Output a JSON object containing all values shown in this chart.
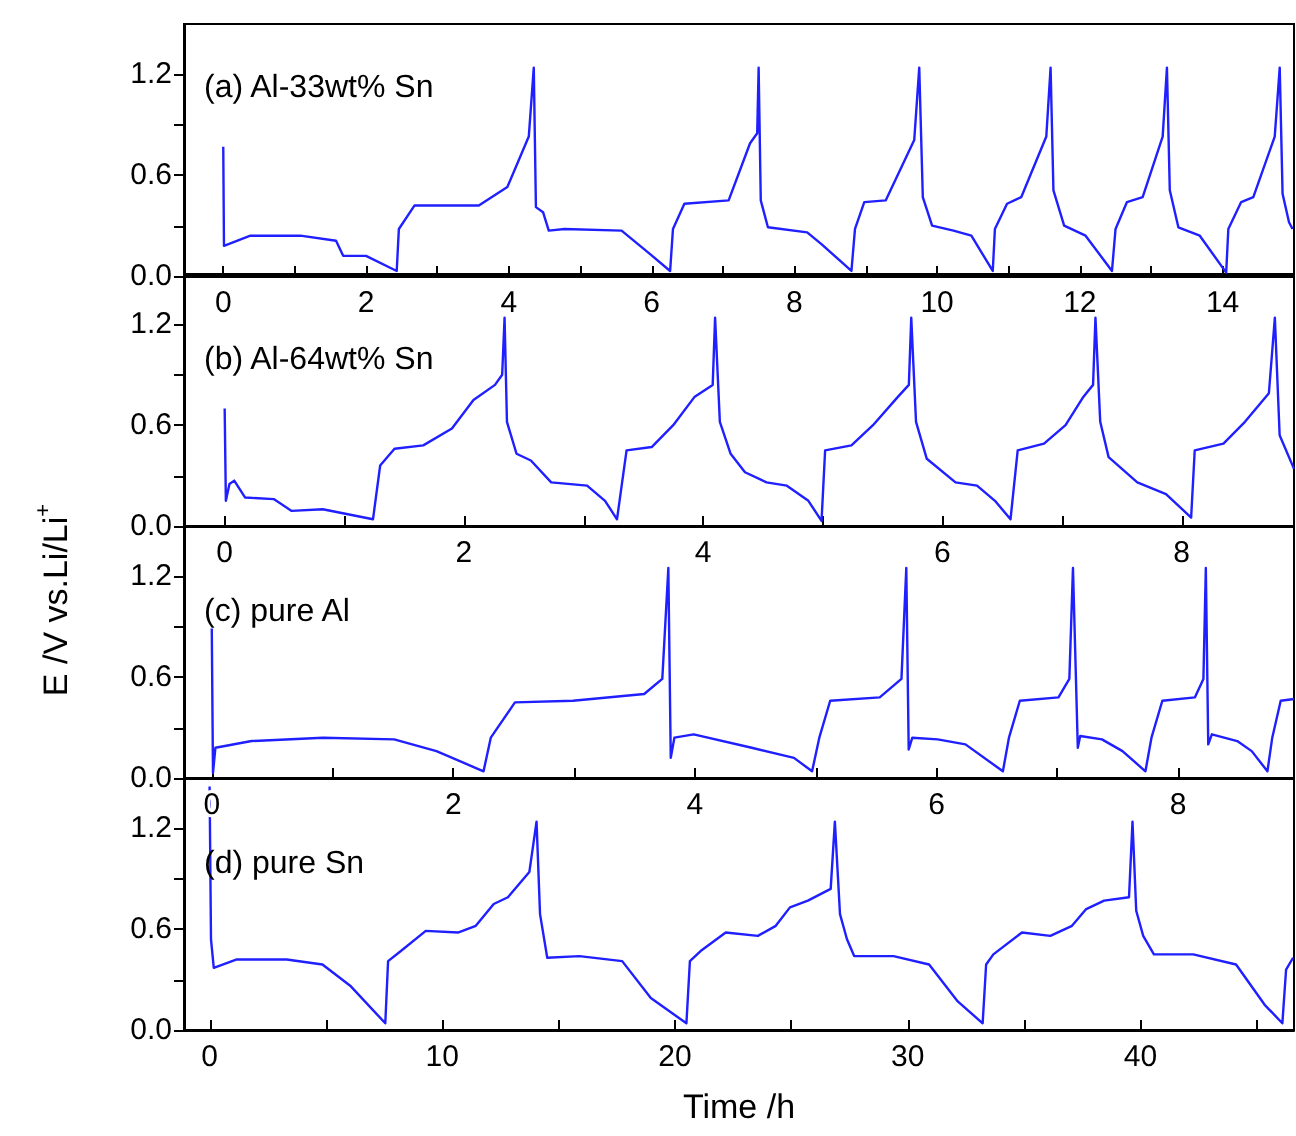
{
  "chart_data": [
    {
      "type": "line",
      "title": "(a) Al-33wt% Sn",
      "marker": "none",
      "line_style": "solid",
      "grid": false,
      "xlim": [
        -0.55,
        15.0
      ],
      "xticks": [
        0,
        {
          "value": 1,
          "label": null
        },
        2,
        {
          "value": 3,
          "label": null
        },
        4,
        {
          "value": 5,
          "label": null
        },
        6,
        {
          "value": 7,
          "label": null
        },
        8,
        {
          "value": 9,
          "label": null
        },
        10,
        {
          "value": 11,
          "label": null
        },
        12,
        {
          "value": 13,
          "label": null
        },
        14
      ],
      "ylim": [
        0,
        1.5
      ],
      "yticks": [
        {
          "value": 0,
          "label": "0.0"
        },
        {
          "value": 0.3,
          "label": null
        },
        {
          "value": 0.6,
          "label": "0.6"
        },
        {
          "value": 0.9,
          "label": null
        },
        {
          "value": 1.2,
          "label": "1.2"
        }
      ],
      "series": [
        {
          "color": "#1f1fff",
          "x": [
            0,
            0.01,
            0.38,
            1.08,
            1.58,
            1.68,
            2.0,
            2.43,
            2.46,
            2.68,
            3.58,
            3.98,
            4.28,
            4.35,
            4.38,
            4.48,
            4.56,
            4.78,
            5.58,
            5.98,
            6.26,
            6.3,
            6.46,
            7.08,
            7.38,
            7.48,
            7.5,
            7.53,
            7.63,
            8.18,
            8.38,
            8.8,
            8.85,
            8.98,
            9.28,
            9.68,
            9.75,
            9.8,
            9.93,
            10.23,
            10.48,
            10.78,
            10.81,
            10.98,
            11.18,
            11.53,
            11.59,
            11.63,
            11.78,
            12.08,
            12.45,
            12.5,
            12.66,
            12.88,
            13.16,
            13.22,
            13.26,
            13.38,
            13.68,
            14.05,
            14.08,
            14.26,
            14.43,
            14.73,
            14.8,
            14.84,
            14.93,
            14.98
          ],
          "values": [
            0.77,
            0.18,
            0.24,
            0.24,
            0.21,
            0.12,
            0.12,
            0.03,
            0.28,
            0.42,
            0.42,
            0.53,
            0.83,
            1.24,
            0.41,
            0.38,
            0.27,
            0.28,
            0.27,
            0.13,
            0.03,
            0.28,
            0.43,
            0.45,
            0.79,
            0.85,
            1.24,
            0.45,
            0.29,
            0.26,
            0.19,
            0.03,
            0.28,
            0.44,
            0.45,
            0.81,
            1.24,
            0.47,
            0.3,
            0.27,
            0.24,
            0.03,
            0.28,
            0.43,
            0.47,
            0.83,
            1.24,
            0.51,
            0.3,
            0.24,
            0.03,
            0.28,
            0.44,
            0.47,
            0.83,
            1.24,
            0.51,
            0.29,
            0.24,
            0.02,
            0.28,
            0.44,
            0.47,
            0.83,
            1.24,
            0.49,
            0.32,
            0.28
          ]
        }
      ]
    },
    {
      "type": "line",
      "title": "(b) Al-64wt% Sn",
      "marker": "none",
      "line_style": "solid",
      "grid": false,
      "xlim": [
        -0.34,
        8.94
      ],
      "xticks": [
        0,
        {
          "value": 1,
          "label": null
        },
        2,
        {
          "value": 3,
          "label": null
        },
        4,
        {
          "value": 5,
          "label": null
        },
        6,
        {
          "value": 7,
          "label": null
        },
        8
      ],
      "ylim": [
        0,
        1.5
      ],
      "yticks": [
        {
          "value": 0,
          "label": "0.0"
        },
        {
          "value": 0.3,
          "label": null
        },
        {
          "value": 0.6,
          "label": "0.6"
        },
        {
          "value": 0.9,
          "label": null
        },
        {
          "value": 1.2,
          "label": "1.2"
        }
      ],
      "series": [
        {
          "color": "#1f1fff",
          "x": [
            0,
            0.01,
            0.04,
            0.08,
            0.17,
            0.41,
            0.56,
            0.82,
            1.24,
            1.3,
            1.42,
            1.66,
            1.9,
            2.08,
            2.26,
            2.32,
            2.34,
            2.36,
            2.44,
            2.56,
            2.73,
            3.03,
            3.18,
            3.28,
            3.36,
            3.57,
            3.75,
            3.93,
            4.08,
            4.1,
            4.14,
            4.23,
            4.35,
            4.53,
            4.7,
            4.88,
            4.99,
            5.02,
            5.24,
            5.42,
            5.63,
            5.72,
            5.74,
            5.78,
            5.87,
            6.11,
            6.29,
            6.44,
            6.57,
            6.63,
            6.85,
            7.03,
            7.18,
            7.26,
            7.28,
            7.32,
            7.39,
            7.63,
            7.87,
            8.08,
            8.11,
            8.35,
            8.53,
            8.73,
            8.78,
            8.82,
            8.94
          ],
          "values": [
            0.7,
            0.15,
            0.25,
            0.27,
            0.17,
            0.16,
            0.09,
            0.1,
            0.04,
            0.36,
            0.46,
            0.48,
            0.58,
            0.75,
            0.84,
            0.9,
            1.24,
            0.62,
            0.43,
            0.39,
            0.26,
            0.24,
            0.15,
            0.04,
            0.45,
            0.47,
            0.6,
            0.77,
            0.84,
            1.24,
            0.62,
            0.43,
            0.32,
            0.26,
            0.24,
            0.15,
            0.03,
            0.45,
            0.48,
            0.6,
            0.77,
            0.84,
            1.24,
            0.62,
            0.4,
            0.26,
            0.24,
            0.15,
            0.04,
            0.45,
            0.49,
            0.6,
            0.77,
            0.84,
            1.24,
            0.62,
            0.41,
            0.26,
            0.19,
            0.05,
            0.45,
            0.49,
            0.62,
            0.79,
            1.24,
            0.54,
            0.34
          ]
        }
      ]
    },
    {
      "type": "line",
      "title": "(c) pure Al",
      "ylabel": "E /V vs.Li/Li$^{+}$",
      "marker": "none",
      "line_style": "solid",
      "grid": false,
      "xlim": [
        -0.23,
        8.96
      ],
      "xticks": [
        0,
        {
          "value": 1,
          "label": null
        },
        2,
        {
          "value": 3,
          "label": null
        },
        4,
        {
          "value": 5,
          "label": null
        },
        6,
        {
          "value": 7,
          "label": null
        },
        8
      ],
      "ylim": [
        0,
        1.5
      ],
      "yticks": [
        {
          "value": 0,
          "label": "0.0"
        },
        {
          "value": 0.3,
          "label": null
        },
        {
          "value": 0.6,
          "label": "0.6"
        },
        {
          "value": 0.9,
          "label": null
        },
        {
          "value": 1.2,
          "label": "1.2"
        }
      ],
      "series": [
        {
          "color": "#1f1fff",
          "x": [
            0,
            0.01,
            0.03,
            0.33,
            0.92,
            1.51,
            1.86,
            2.25,
            2.31,
            2.51,
            2.99,
            3.58,
            3.73,
            3.78,
            3.8,
            3.83,
            3.99,
            4.47,
            4.82,
            4.97,
            5.03,
            5.12,
            5.53,
            5.71,
            5.75,
            5.77,
            5.8,
            6.01,
            6.24,
            6.55,
            6.6,
            6.69,
            7.01,
            7.1,
            7.13,
            7.17,
            7.19,
            7.37,
            7.54,
            7.73,
            7.78,
            7.87,
            8.14,
            8.21,
            8.23,
            8.25,
            8.28,
            8.49,
            8.61,
            8.74,
            8.78,
            8.85,
            8.96
          ],
          "values": [
            0.89,
            0.03,
            0.18,
            0.22,
            0.24,
            0.23,
            0.16,
            0.04,
            0.24,
            0.45,
            0.46,
            0.5,
            0.59,
            1.25,
            0.12,
            0.24,
            0.26,
            0.18,
            0.12,
            0.04,
            0.24,
            0.46,
            0.48,
            0.59,
            1.25,
            0.17,
            0.24,
            0.23,
            0.2,
            0.04,
            0.24,
            0.46,
            0.48,
            0.59,
            1.25,
            0.18,
            0.25,
            0.23,
            0.16,
            0.04,
            0.24,
            0.46,
            0.48,
            0.59,
            1.25,
            0.2,
            0.26,
            0.22,
            0.16,
            0.04,
            0.24,
            0.46,
            0.47
          ]
        }
      ]
    },
    {
      "type": "line",
      "title": "(d) pure Sn",
      "xlabel": "Time /h",
      "marker": "none",
      "line_style": "solid",
      "grid": false,
      "xlim": [
        -1.1,
        46.6
      ],
      "xticks": [
        0,
        {
          "value": 5,
          "label": null
        },
        10,
        {
          "value": 15,
          "label": null
        },
        20,
        {
          "value": 25,
          "label": null
        },
        30,
        {
          "value": 35,
          "label": null
        },
        40,
        {
          "value": 45,
          "label": null
        }
      ],
      "ylim": [
        0,
        1.5
      ],
      "yticks": [
        {
          "value": 0,
          "label": "0.0"
        },
        {
          "value": 0.3,
          "label": null
        },
        {
          "value": 0.6,
          "label": "0.6"
        },
        {
          "value": 0.9,
          "label": null
        },
        {
          "value": 1.2,
          "label": "1.2"
        }
      ],
      "series": [
        {
          "color": "#1f1fff",
          "x": [
            0,
            0.06,
            0.18,
            1.17,
            3.31,
            4.85,
            6.07,
            7.55,
            7.67,
            8.22,
            9.29,
            10.67,
            11.44,
            12.21,
            12.82,
            13.74,
            14.05,
            14.2,
            14.51,
            15.89,
            17.73,
            18.96,
            20.49,
            20.64,
            21.1,
            22.18,
            23.56,
            24.33,
            24.94,
            25.71,
            26.69,
            26.87,
            27.09,
            27.39,
            27.7,
            29.39,
            30.92,
            32.15,
            33.22,
            33.37,
            33.68,
            34.91,
            36.13,
            37.06,
            37.67,
            38.44,
            39.51,
            39.66,
            39.82,
            40.12,
            40.58,
            42.27,
            44.11,
            45.34,
            46.1,
            46.26,
            46.56
          ],
          "values": [
            1.45,
            0.54,
            0.37,
            0.42,
            0.42,
            0.39,
            0.26,
            0.04,
            0.41,
            0.47,
            0.59,
            0.58,
            0.62,
            0.75,
            0.79,
            0.94,
            1.24,
            0.69,
            0.43,
            0.44,
            0.41,
            0.19,
            0.04,
            0.41,
            0.47,
            0.58,
            0.56,
            0.62,
            0.73,
            0.77,
            0.84,
            1.24,
            0.69,
            0.54,
            0.44,
            0.44,
            0.39,
            0.17,
            0.04,
            0.39,
            0.45,
            0.58,
            0.56,
            0.62,
            0.72,
            0.77,
            0.79,
            1.24,
            0.71,
            0.56,
            0.45,
            0.45,
            0.39,
            0.15,
            0.04,
            0.36,
            0.43
          ]
        }
      ]
    }
  ]
}
